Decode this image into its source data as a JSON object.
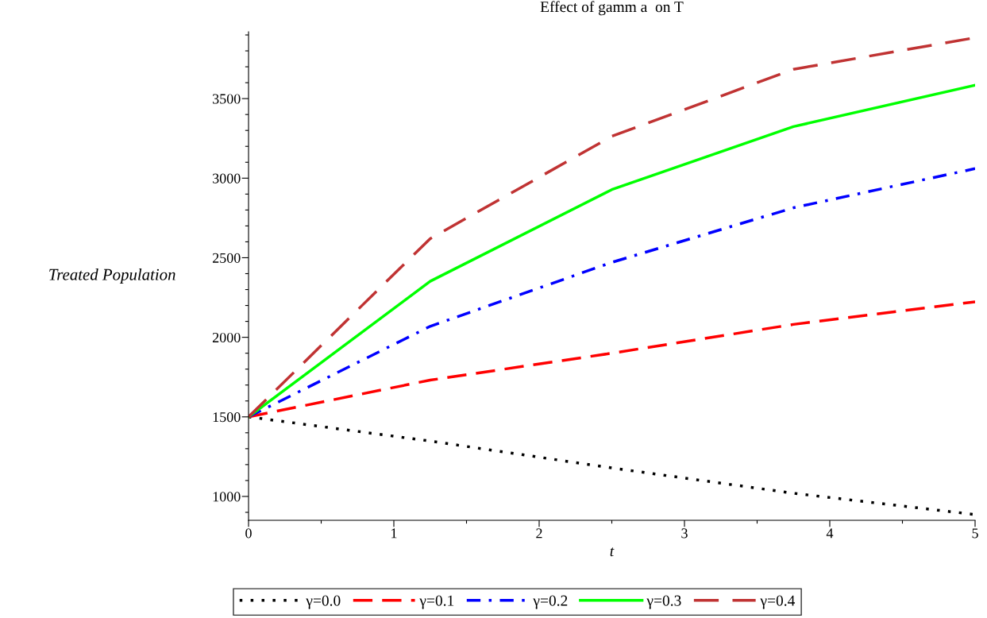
{
  "chart_data": {
    "type": "line",
    "title": "Effect of gamm a  on T",
    "xlabel": "t",
    "ylabel": "Treated Population",
    "x": [
      0,
      1.25,
      2.5,
      3.75,
      5
    ],
    "series": [
      {
        "name": "γ=0.0",
        "color": "#000000",
        "line_style": "dotted",
        "values": [
          1500,
          1348,
          1179,
          1020,
          886
        ]
      },
      {
        "name": "γ=0.1",
        "color": "#ff0000",
        "line_style": "dashed",
        "values": [
          1500,
          1731,
          1900,
          2081,
          2223
        ]
      },
      {
        "name": "γ=0.2",
        "color": "#0000ff",
        "line_style": "dashdot",
        "values": [
          1500,
          2069,
          2471,
          2814,
          3060
        ]
      },
      {
        "name": "γ=0.3",
        "color": "#00ff00",
        "line_style": "solid",
        "values": [
          1500,
          2352,
          2928,
          3324,
          3584
        ]
      },
      {
        "name": "γ=0.4",
        "color": "#c03333",
        "line_style": "longdash",
        "values": [
          1500,
          2620,
          3263,
          3684,
          3883
        ]
      }
    ],
    "xlim": [
      0,
      5
    ],
    "ylim": [
      850,
      3920
    ],
    "xticks": [
      0,
      {
        "value": 0.5,
        "label": null
      },
      1,
      {
        "value": 1.5,
        "label": null
      },
      2,
      {
        "value": 2.5,
        "label": null
      },
      3,
      {
        "value": 3.5,
        "label": null
      },
      4,
      {
        "value": 4.5,
        "label": null
      },
      5
    ],
    "yticks": [
      {
        "value": 900,
        "label": null
      },
      1000,
      {
        "value": 1100,
        "label": null
      },
      {
        "value": 1200,
        "label": null
      },
      {
        "value": 1300,
        "label": null
      },
      {
        "value": 1400,
        "label": null
      },
      1500,
      {
        "value": 1600,
        "label": null
      },
      {
        "value": 1700,
        "label": null
      },
      {
        "value": 1800,
        "label": null
      },
      {
        "value": 1900,
        "label": null
      },
      2000,
      {
        "value": 2100,
        "label": null
      },
      {
        "value": 2200,
        "label": null
      },
      {
        "value": 2300,
        "label": null
      },
      {
        "value": 2400,
        "label": null
      },
      2500,
      {
        "value": 2600,
        "label": null
      },
      {
        "value": 2700,
        "label": null
      },
      {
        "value": 2800,
        "label": null
      },
      {
        "value": 2900,
        "label": null
      },
      3000,
      {
        "value": 3100,
        "label": null
      },
      {
        "value": 3200,
        "label": null
      },
      {
        "value": 3300,
        "label": null
      },
      {
        "value": 3400,
        "label": null
      },
      3500,
      {
        "value": 3600,
        "label": null
      },
      {
        "value": 3700,
        "label": null
      },
      {
        "value": 3800,
        "label": null
      },
      {
        "value": 3900,
        "label": null
      }
    ],
    "grid": false,
    "legend": "bottom",
    "marker": "none"
  }
}
